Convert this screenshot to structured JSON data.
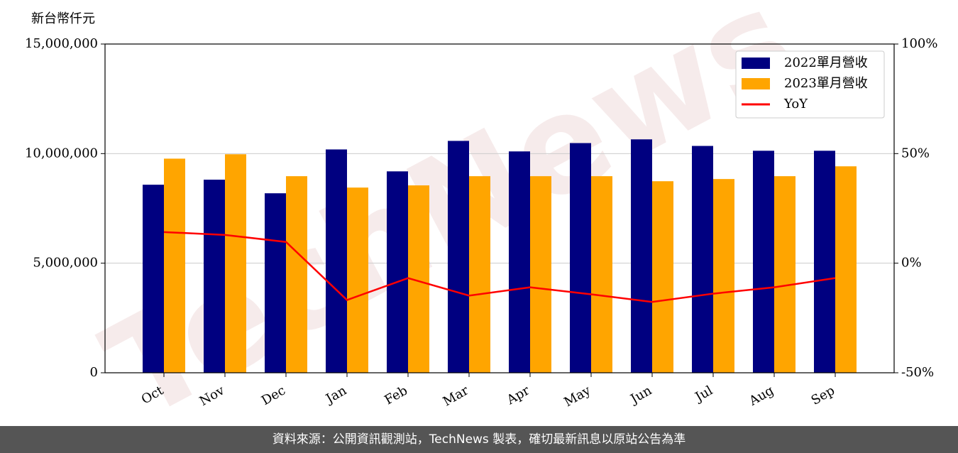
{
  "chart_data": {
    "type": "bar_line",
    "y_label": "新台幣仟元",
    "watermark": "TechNews",
    "categories": [
      "Oct",
      "Nov",
      "Dec",
      "Jan",
      "Feb",
      "Mar",
      "Apr",
      "May",
      "Jun",
      "Jul",
      "Aug",
      "Sep"
    ],
    "series": [
      {
        "name": "2022單月營收",
        "type": "bar",
        "color": "#000080",
        "values": [
          8580000,
          8810000,
          8190000,
          10190000,
          9190000,
          10580000,
          10100000,
          10480000,
          10650000,
          10350000,
          10130000,
          10130000
        ]
      },
      {
        "name": "2023單月營收",
        "type": "bar",
        "color": "#ffa500",
        "values": [
          9770000,
          9970000,
          8970000,
          8450000,
          8550000,
          8970000,
          8970000,
          8970000,
          8740000,
          8840000,
          8970000,
          9420000
        ]
      },
      {
        "name": "YoY",
        "type": "line",
        "axis": "y2",
        "color": "#ff0000",
        "values": [
          14.2,
          12.9,
          9.7,
          -16.8,
          -6.8,
          -14.8,
          -11,
          -14.2,
          -17.7,
          -13.9,
          -11,
          -6.8
        ]
      }
    ],
    "ylim": [
      0,
      15000000
    ],
    "yticks": [
      0,
      {
        "value": 5000000,
        "label": "5,000,000"
      },
      {
        "value": 10000000,
        "label": "10,000,000"
      },
      {
        "value": 15000000,
        "label": "15,000,000"
      }
    ],
    "y2lim": [
      -50,
      100
    ],
    "y2ticks": [
      {
        "value": -50,
        "label": "-50%"
      },
      {
        "value": 0,
        "label": "0%"
      },
      {
        "value": 50,
        "label": "50%"
      },
      {
        "value": 100,
        "label": "100%"
      }
    ],
    "grid": true,
    "legend": "upper right"
  },
  "footer": "資料來源：公開資訊觀測站，TechNews 製表，確切最新訊息以原站公告為準"
}
